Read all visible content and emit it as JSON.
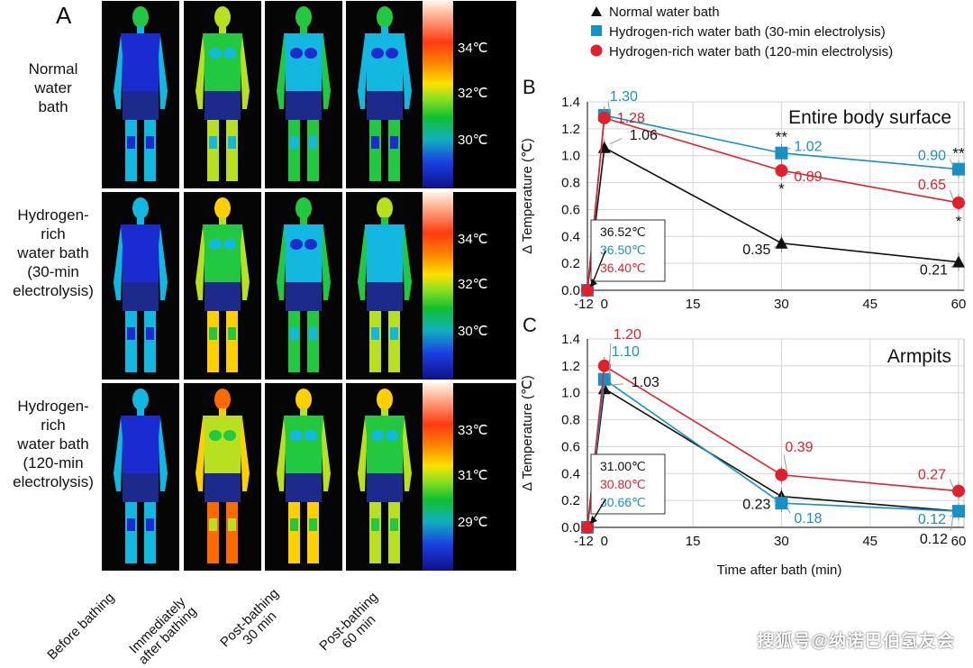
{
  "panel_labels": {
    "a": "A",
    "b": "B",
    "c": "C"
  },
  "rows": [
    {
      "label_lines": [
        "Normal",
        "water",
        "bath"
      ],
      "colorbar_ticks": [
        "34℃",
        "32℃",
        "30℃"
      ]
    },
    {
      "label_lines": [
        "Hydrogen-",
        "rich",
        "water bath",
        "(30-min",
        "electrolysis)"
      ],
      "colorbar_ticks": [
        "34℃",
        "32℃",
        "30℃"
      ]
    },
    {
      "label_lines": [
        "Hydrogen-",
        "rich",
        "water bath",
        "(120-min",
        "electrolysis)"
      ],
      "colorbar_ticks": [
        "33℃",
        "31℃",
        "29℃"
      ]
    }
  ],
  "columns": [
    {
      "lines": [
        "Before bathing"
      ]
    },
    {
      "lines": [
        "Immediately",
        "after bathing"
      ]
    },
    {
      "lines": [
        "Post-bathing",
        "30 min"
      ]
    },
    {
      "lines": [
        "Post-bathing",
        "60 min"
      ]
    }
  ],
  "colors": {
    "normal": "#111111",
    "h30": "#1a8fc4",
    "h120": "#e0202a"
  },
  "chart_data": [
    {
      "type": "line",
      "panel": "B",
      "title": "Entire body surface",
      "ylabel": "Δ Temperature (℃)",
      "xlabel": "",
      "x_ticks": [
        "-12",
        "0",
        "15",
        "30",
        "45",
        "60"
      ],
      "y_ticks": [
        "0.0",
        "0.2",
        "0.4",
        "0.6",
        "0.8",
        "1.0",
        "1.2",
        "1.4"
      ],
      "xlim": [
        -12,
        60
      ],
      "ylim": [
        0,
        1.4
      ],
      "grid": true,
      "legend": [
        "Normal water bath",
        "Hydrogen-rich water bath (30-min electrolysis)",
        "Hydrogen-rich water bath (120-min electrolysis)"
      ],
      "series": [
        {
          "name": "Normal water bath",
          "x": [
            -12,
            0,
            30,
            60
          ],
          "y": [
            0,
            1.06,
            0.35,
            0.21
          ],
          "labels": [
            "",
            "1.06",
            "0.35",
            "0.21"
          ]
        },
        {
          "name": "Hydrogen-rich water bath (30-min electrolysis)",
          "x": [
            -12,
            0,
            30,
            60
          ],
          "y": [
            0,
            1.3,
            1.02,
            0.9
          ],
          "labels": [
            "",
            "1.30",
            "1.02",
            "0.90"
          ]
        },
        {
          "name": "Hydrogen-rich water bath (120-min electrolysis)",
          "x": [
            -12,
            0,
            30,
            60
          ],
          "y": [
            0,
            1.28,
            0.89,
            0.65
          ],
          "labels": [
            "",
            "1.28",
            "0.89",
            "0.65"
          ]
        }
      ],
      "baselines": [
        "36.52℃",
        "36.50℃",
        "36.40℃"
      ],
      "significance": [
        {
          "text": "**",
          "series": 1,
          "x": 30
        },
        {
          "text": "**",
          "series": 1,
          "x": 60
        },
        {
          "text": "*",
          "series": 2,
          "x": 30
        },
        {
          "text": "*",
          "series": 2,
          "x": 60
        }
      ]
    },
    {
      "type": "line",
      "panel": "C",
      "title": "Armpits",
      "ylabel": "Δ Temperature (℃)",
      "xlabel": "Time after bath (min)",
      "x_ticks": [
        "-12",
        "0",
        "15",
        "30",
        "45",
        "60"
      ],
      "y_ticks": [
        "0.0",
        "0.2",
        "0.4",
        "0.6",
        "0.8",
        "1.0",
        "1.2",
        "1.4"
      ],
      "xlim": [
        -12,
        60
      ],
      "ylim": [
        0,
        1.4
      ],
      "grid": true,
      "series": [
        {
          "name": "Normal water bath",
          "x": [
            -12,
            0,
            30,
            60
          ],
          "y": [
            0,
            1.03,
            0.23,
            0.12
          ],
          "labels": [
            "",
            "1.03",
            "0.23",
            "0.12"
          ]
        },
        {
          "name": "Hydrogen-rich water bath (30-min electrolysis)",
          "x": [
            -12,
            0,
            30,
            60
          ],
          "y": [
            0,
            1.1,
            0.18,
            0.12
          ],
          "labels": [
            "",
            "1.10",
            "0.18",
            "0.12"
          ]
        },
        {
          "name": "Hydrogen-rich water bath (120-min electrolysis)",
          "x": [
            -12,
            0,
            30,
            60
          ],
          "y": [
            0,
            1.2,
            0.39,
            0.27
          ],
          "labels": [
            "",
            "1.20",
            "0.39",
            "0.27"
          ]
        }
      ],
      "baselines": [
        "31.00℃",
        "30.80℃",
        "30.66℃"
      ],
      "significance": []
    }
  ],
  "watermark": "搜狐号@纳诺巴伯氢友会"
}
